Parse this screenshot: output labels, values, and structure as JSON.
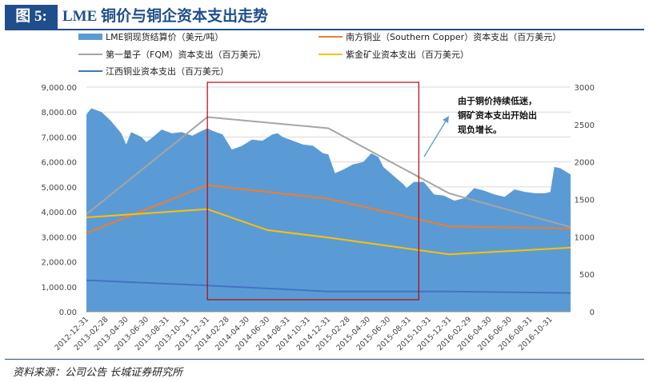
{
  "header": {
    "figure_label": "图 5:",
    "title": "LME 铜价与铜企资本支出走势"
  },
  "footer": {
    "source": "资料来源：公司公告  长城证券研究所"
  },
  "annotation": "由于铜价持续低迷，铜矿资本支出开始出现负增长。",
  "chart_data": {
    "type": "area+line",
    "x_tick_labels": [
      "2012-12-31",
      "2013-02-28",
      "2013-04-30",
      "2013-06-30",
      "2013-08-31",
      "2013-10-31",
      "2013-12-31",
      "2014-02-28",
      "2014-04-30",
      "2014-06-30",
      "2014-08-31",
      "2014-10-31",
      "2014-12-31",
      "2015-02-28",
      "2015-04-30",
      "2015-06-30",
      "2015-08-31",
      "2015-10-31",
      "2015-12-31",
      "2016-02-29",
      "2016-04-30",
      "2016-06-30",
      "2016-08-31",
      "2016-10-31"
    ],
    "x_range": [
      "2012-12-31",
      "2016-12-31"
    ],
    "y_left": {
      "ylim": [
        0,
        9000
      ],
      "ticks": [
        "0.00",
        "1,000.00",
        "2,000.00",
        "3,000.00",
        "4,000.00",
        "5,000.00",
        "6,000.00",
        "7,000.00",
        "8,000.00",
        "9,000.00"
      ]
    },
    "y_right": {
      "ylim": [
        0,
        3000
      ],
      "ticks": [
        "0",
        "500",
        "1000",
        "1500",
        "2000",
        "2500",
        "3000"
      ]
    },
    "grid": true,
    "highlight_box": {
      "x_start": "2013-12-31",
      "x_end": "2015-09-30"
    },
    "series": [
      {
        "name": "LME铜现货结算价（美元/吨）",
        "axis": "left",
        "kind": "area",
        "color": "#5b9bd5",
        "points": [
          [
            "2012-12-31",
            7900
          ],
          [
            "2013-01-15",
            8150
          ],
          [
            "2013-02-15",
            8000
          ],
          [
            "2013-03-15",
            7650
          ],
          [
            "2013-04-15",
            7150
          ],
          [
            "2013-04-30",
            6700
          ],
          [
            "2013-05-15",
            7200
          ],
          [
            "2013-06-15",
            7000
          ],
          [
            "2013-06-30",
            6800
          ],
          [
            "2013-07-15",
            6950
          ],
          [
            "2013-08-15",
            7300
          ],
          [
            "2013-09-15",
            7150
          ],
          [
            "2013-10-15",
            7200
          ],
          [
            "2013-11-15",
            7050
          ],
          [
            "2013-12-15",
            7250
          ],
          [
            "2013-12-31",
            7350
          ],
          [
            "2014-01-15",
            7250
          ],
          [
            "2014-02-15",
            7100
          ],
          [
            "2014-03-15",
            6500
          ],
          [
            "2014-04-15",
            6650
          ],
          [
            "2014-05-15",
            6900
          ],
          [
            "2014-06-15",
            6850
          ],
          [
            "2014-07-15",
            7100
          ],
          [
            "2014-07-31",
            7150
          ],
          [
            "2014-08-15",
            7000
          ],
          [
            "2014-09-15",
            6850
          ],
          [
            "2014-10-15",
            6700
          ],
          [
            "2014-11-15",
            6650
          ],
          [
            "2014-12-15",
            6350
          ],
          [
            "2014-12-31",
            6300
          ],
          [
            "2015-01-20",
            5550
          ],
          [
            "2015-02-15",
            5700
          ],
          [
            "2015-03-15",
            5900
          ],
          [
            "2015-04-15",
            6000
          ],
          [
            "2015-05-10",
            6350
          ],
          [
            "2015-05-31",
            6200
          ],
          [
            "2015-06-15",
            5800
          ],
          [
            "2015-07-15",
            5450
          ],
          [
            "2015-08-15",
            5100
          ],
          [
            "2015-08-24",
            4950
          ],
          [
            "2015-09-15",
            5200
          ],
          [
            "2015-10-15",
            5200
          ],
          [
            "2015-11-15",
            4700
          ],
          [
            "2015-12-15",
            4650
          ],
          [
            "2016-01-15",
            4450
          ],
          [
            "2016-02-15",
            4550
          ],
          [
            "2016-03-15",
            4950
          ],
          [
            "2016-04-15",
            4850
          ],
          [
            "2016-05-15",
            4700
          ],
          [
            "2016-06-15",
            4600
          ],
          [
            "2016-07-15",
            4900
          ],
          [
            "2016-08-15",
            4800
          ],
          [
            "2016-09-15",
            4750
          ],
          [
            "2016-10-15",
            4750
          ],
          [
            "2016-10-31",
            4800
          ],
          [
            "2016-11-12",
            5800
          ],
          [
            "2016-11-30",
            5750
          ],
          [
            "2016-12-31",
            5500
          ]
        ]
      },
      {
        "name": "南方铜业（Southern Copper）资本支出（百万美元）",
        "axis": "right",
        "kind": "line",
        "color": "#ed7d31",
        "points": [
          [
            "2012-12-31",
            1050
          ],
          [
            "2013-12-31",
            1690
          ],
          [
            "2014-12-31",
            1510
          ],
          [
            "2015-12-31",
            1140
          ],
          [
            "2016-12-31",
            1110
          ]
        ]
      },
      {
        "name": "第一量子（FQM）资本支出（百万美元）",
        "axis": "right",
        "kind": "line",
        "color": "#a5a5a5",
        "points": [
          [
            "2012-12-31",
            1300
          ],
          [
            "2013-12-31",
            2600
          ],
          [
            "2014-12-31",
            2450
          ],
          [
            "2015-12-31",
            1580
          ],
          [
            "2016-12-31",
            1130
          ]
        ]
      },
      {
        "name": "紫金矿业资本支出（百万美元）",
        "axis": "right",
        "kind": "line",
        "color": "#ffc000",
        "points": [
          [
            "2012-12-31",
            1260
          ],
          [
            "2013-12-31",
            1370
          ],
          [
            "2014-06-30",
            1090
          ],
          [
            "2014-12-31",
            990
          ],
          [
            "2015-12-31",
            765
          ],
          [
            "2016-12-31",
            855
          ]
        ]
      },
      {
        "name": "江西铜业资本支出（百万美元）",
        "axis": "right",
        "kind": "line",
        "color": "#4472c4",
        "points": [
          [
            "2012-12-31",
            420
          ],
          [
            "2013-12-31",
            350
          ],
          [
            "2014-12-31",
            270
          ],
          [
            "2015-12-31",
            270
          ],
          [
            "2016-12-31",
            250
          ]
        ]
      }
    ]
  }
}
